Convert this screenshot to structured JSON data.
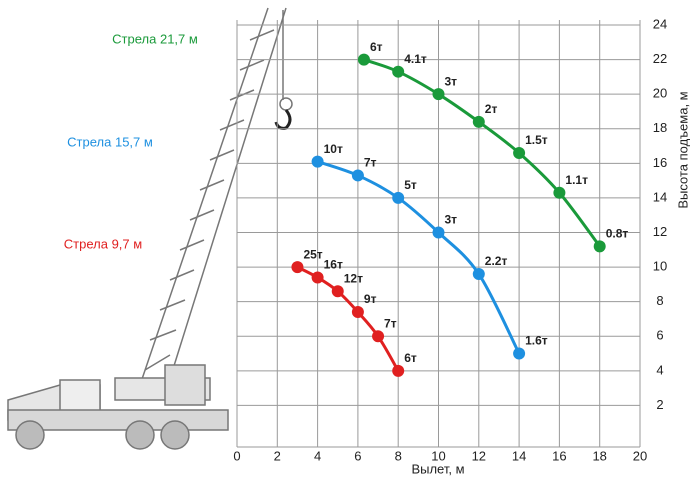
{
  "chart_data": {
    "type": "line",
    "x_label": "Вылет, м",
    "y_label": "Высота подъема, м",
    "xlim": [
      0,
      20
    ],
    "xticks": [
      0,
      2,
      4,
      6,
      8,
      10,
      12,
      14,
      16,
      18,
      20
    ],
    "ylim": [
      0,
      24
    ],
    "yticks": [
      2,
      4,
      6,
      8,
      10,
      12,
      14,
      16,
      18,
      20,
      22,
      24
    ],
    "grid": true,
    "series": [
      {
        "name": "Стрела 21,7 м",
        "color": "#1a9a3a",
        "x": [
          6.3,
          8,
          10,
          12,
          14,
          16,
          18
        ],
        "values": [
          22,
          21.3,
          20,
          18.4,
          16.6,
          14.3,
          11.2
        ],
        "point_labels": [
          "6т",
          "4.1т",
          "3т",
          "2т",
          "1.5т",
          "1.1т",
          "0.8т"
        ]
      },
      {
        "name": "Стрела 15,7 м",
        "color": "#1e90e0",
        "x": [
          4,
          6,
          8,
          10,
          12,
          14
        ],
        "values": [
          16.1,
          15.3,
          14,
          12,
          9.6,
          5
        ],
        "point_labels": [
          "10т",
          "7т",
          "5т",
          "3т",
          "2.2т",
          "1.6т"
        ]
      },
      {
        "name": "Стрела 9,7 м",
        "color": "#e02020",
        "x": [
          3,
          4,
          5,
          6,
          7,
          8
        ],
        "values": [
          10,
          9.4,
          8.6,
          7.4,
          6,
          4
        ],
        "point_labels": [
          "25т",
          "16т",
          "12т",
          "9т",
          "7т",
          "6т"
        ]
      }
    ]
  }
}
